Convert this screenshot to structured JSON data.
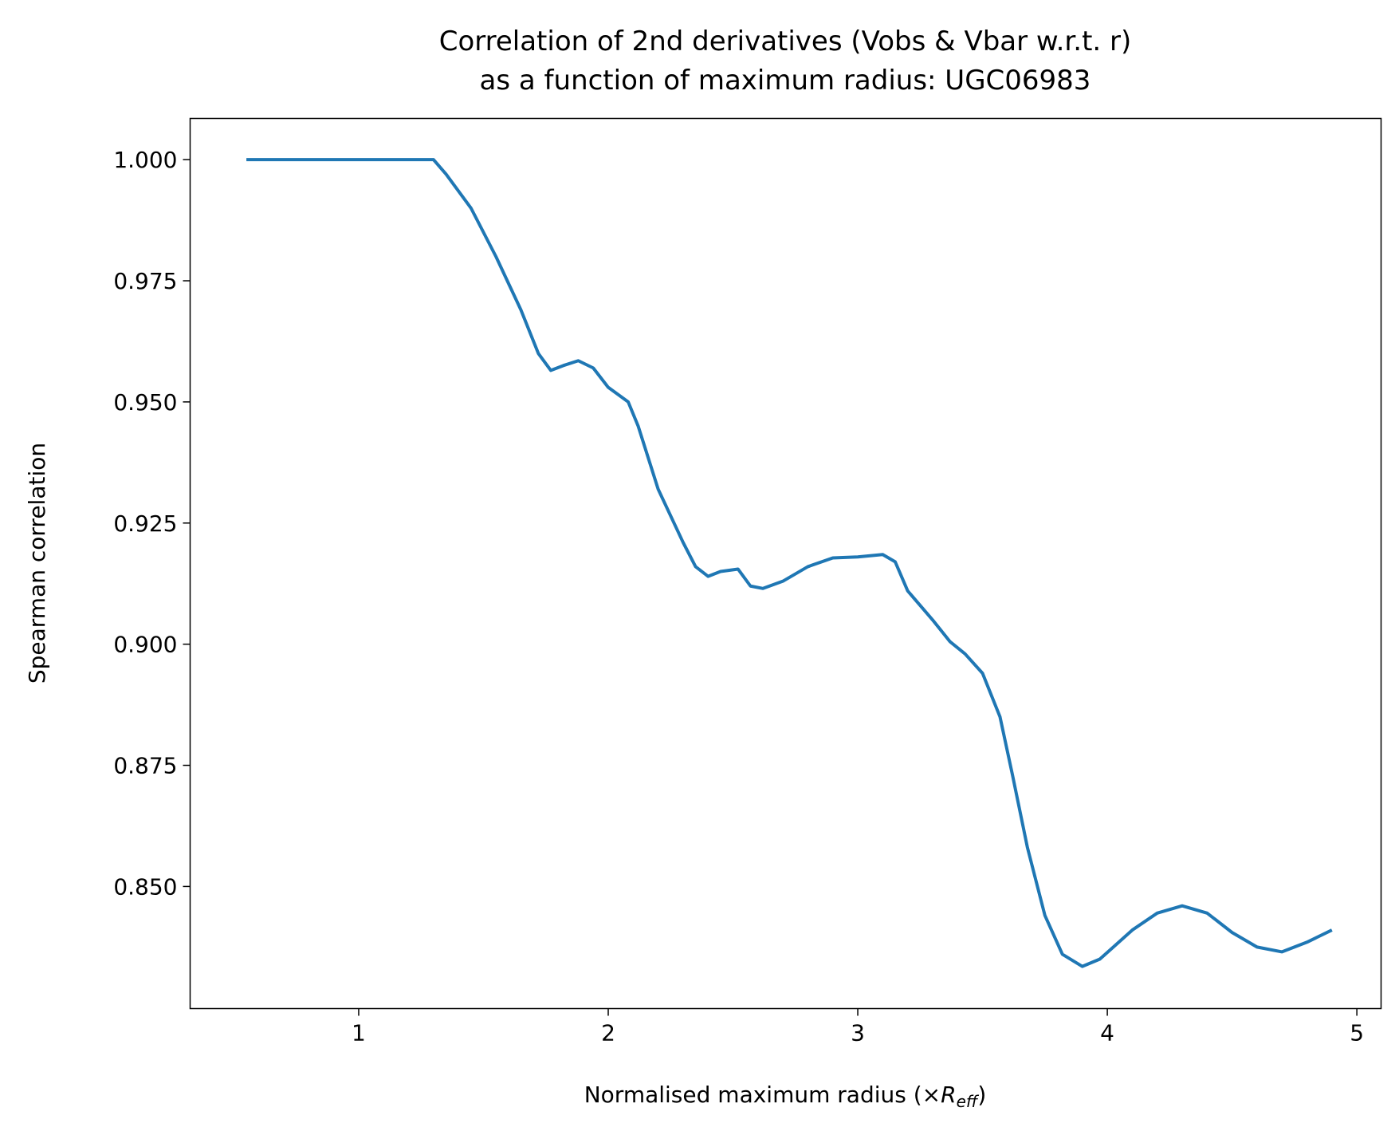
{
  "chart_data": {
    "type": "line",
    "title": [
      "Correlation of 2nd derivatives (Vobs & Vbar w.r.t. r)",
      "as a function of maximum radius: UGC06983"
    ],
    "xlabel": {
      "text": "Normalised maximum radius (×",
      "symbol": "R",
      "subscript": "eff",
      "close": ")"
    },
    "ylabel": "Spearman correlation",
    "x": [
      0.55,
      1.0,
      1.3,
      1.35,
      1.45,
      1.55,
      1.65,
      1.72,
      1.77,
      1.82,
      1.88,
      1.94,
      2.0,
      2.08,
      2.12,
      2.2,
      2.3,
      2.35,
      2.4,
      2.45,
      2.52,
      2.57,
      2.62,
      2.7,
      2.8,
      2.9,
      3.0,
      3.1,
      3.15,
      3.2,
      3.3,
      3.37,
      3.43,
      3.5,
      3.57,
      3.62,
      3.68,
      3.75,
      3.82,
      3.9,
      3.97,
      4.1,
      4.2,
      4.3,
      4.4,
      4.5,
      4.6,
      4.7,
      4.8,
      4.9
    ],
    "series": [
      {
        "color": "#1f77b4",
        "values": [
          1.0,
          1.0,
          1.0,
          0.997,
          0.99,
          0.98,
          0.969,
          0.96,
          0.9565,
          0.9575,
          0.9585,
          0.957,
          0.953,
          0.95,
          0.945,
          0.932,
          0.921,
          0.916,
          0.914,
          0.915,
          0.9155,
          0.912,
          0.9115,
          0.913,
          0.916,
          0.9178,
          0.918,
          0.9185,
          0.917,
          0.911,
          0.905,
          0.9005,
          0.898,
          0.894,
          0.885,
          0.873,
          0.858,
          0.844,
          0.836,
          0.8335,
          0.835,
          0.841,
          0.8445,
          0.846,
          0.8445,
          0.8405,
          0.8375,
          0.8365,
          0.8385,
          0.841
        ]
      }
    ],
    "xlim": [
      0.3245,
      5.097
    ],
    "xticks": [
      1,
      2,
      3,
      4,
      5
    ],
    "ylim": [
      0.8248,
      1.0085
    ],
    "yticks": [
      {
        "value": 0.85,
        "label": "0.850"
      },
      {
        "value": 0.875,
        "label": "0.875"
      },
      {
        "value": 0.9,
        "label": "0.900"
      },
      {
        "value": 0.925,
        "label": "0.925"
      },
      {
        "value": 0.95,
        "label": "0.950"
      },
      {
        "value": 0.975,
        "label": "0.975"
      },
      {
        "value": 1.0,
        "label": "1.000"
      }
    ],
    "grid": false
  }
}
